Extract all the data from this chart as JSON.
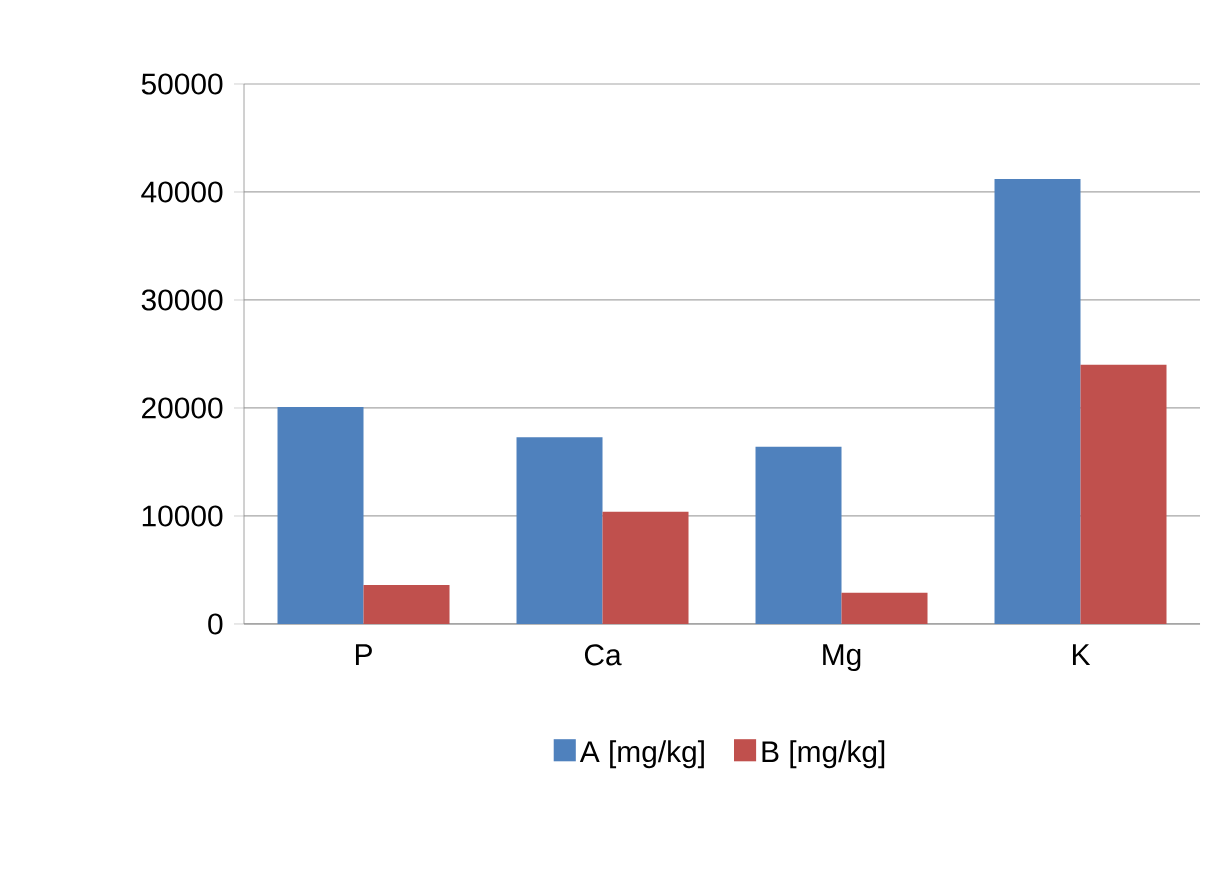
{
  "chart_data": {
    "type": "bar",
    "categories": [
      "P",
      "Ca",
      "Mg",
      "K"
    ],
    "series": [
      {
        "name": "A [mg/kg]",
        "color": "#4f81bd",
        "values": [
          20100,
          17300,
          16400,
          41200
        ]
      },
      {
        "name": "B [mg/kg]",
        "color": "#c0504d",
        "values": [
          3600,
          10400,
          2900,
          24000
        ]
      }
    ],
    "ylim": [
      0,
      50000
    ],
    "yticks": [
      0,
      10000,
      20000,
      30000,
      40000,
      50000
    ],
    "grid": "y",
    "legend": "bottom"
  }
}
